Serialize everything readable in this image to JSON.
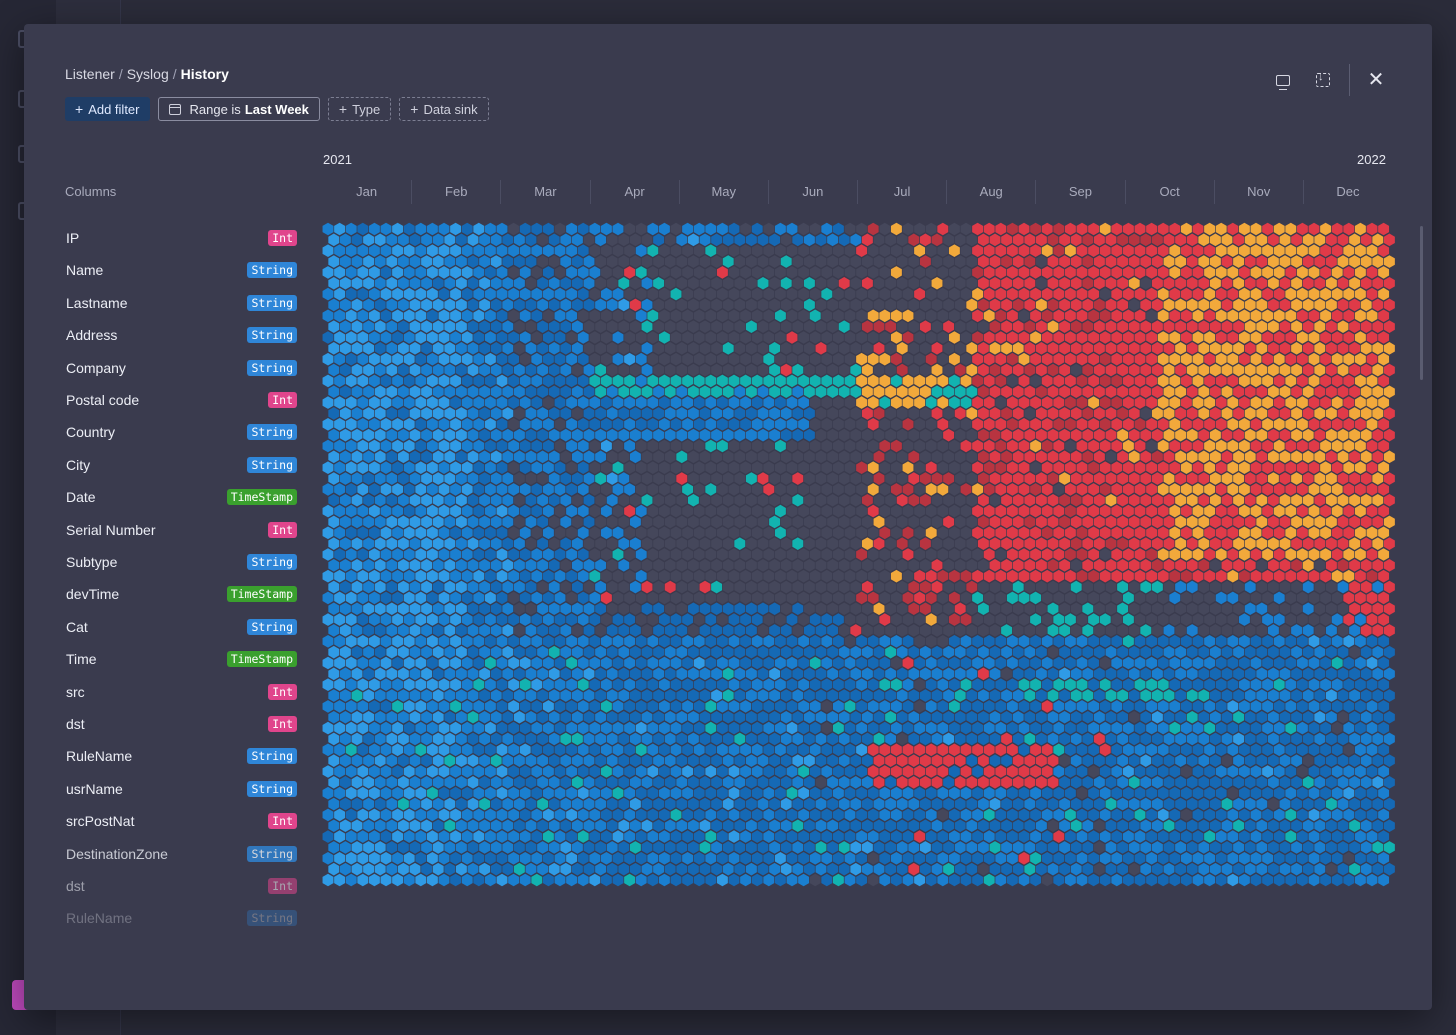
{
  "breadcrumb": {
    "items": [
      "Listener",
      "Syslog"
    ],
    "current": "History"
  },
  "toolbar": {
    "add_filter": "Add filter",
    "range_label": "Range is",
    "range_value": "Last Week",
    "type_label": "Type",
    "data_sink_label": "Data sink"
  },
  "icons": [
    "monitor-icon",
    "download-frame-icon",
    "close-icon",
    "calendar-icon",
    "plus-icon"
  ],
  "header": {
    "columns_label": "Columns",
    "year_start": "2021",
    "year_end": "2022",
    "months": [
      "Jan",
      "Feb",
      "Mar",
      "Apr",
      "May",
      "Jun",
      "Jul",
      "Aug",
      "Sep",
      "Oct",
      "Nov",
      "Dec"
    ]
  },
  "columns": [
    {
      "name": "IP",
      "type": "Int"
    },
    {
      "name": "Name",
      "type": "String"
    },
    {
      "name": "Lastname",
      "type": "String"
    },
    {
      "name": "Address",
      "type": "String"
    },
    {
      "name": "Company",
      "type": "String"
    },
    {
      "name": "Postal code",
      "type": "Int"
    },
    {
      "name": "Country",
      "type": "String"
    },
    {
      "name": "City",
      "type": "String"
    },
    {
      "name": "Date",
      "type": "TimeStamp"
    },
    {
      "name": "Serial Number",
      "type": "Int"
    },
    {
      "name": "Subtype",
      "type": "String"
    },
    {
      "name": "devTime",
      "type": "TimeStamp"
    },
    {
      "name": "Cat",
      "type": "String"
    },
    {
      "name": "Time",
      "type": "TimeStamp"
    },
    {
      "name": "src",
      "type": "Int"
    },
    {
      "name": "dst",
      "type": "Int"
    },
    {
      "name": "RuleName",
      "type": "String"
    },
    {
      "name": "usrName",
      "type": "String"
    },
    {
      "name": "srcPostNat",
      "type": "Int"
    },
    {
      "name": "DestinationZone",
      "type": "String"
    },
    {
      "name": "dst",
      "type": "Int"
    },
    {
      "name": "RuleName",
      "type": "String"
    }
  ],
  "colors": {
    "blue_light": "#2f9be6",
    "blue_mid": "#1a7fd0",
    "blue_dark": "#1569b5",
    "teal": "#12b3b0",
    "red": "#e03a48",
    "red_dark": "#b83440",
    "orange": "#f2a93b",
    "empty": "#45475b"
  }
}
